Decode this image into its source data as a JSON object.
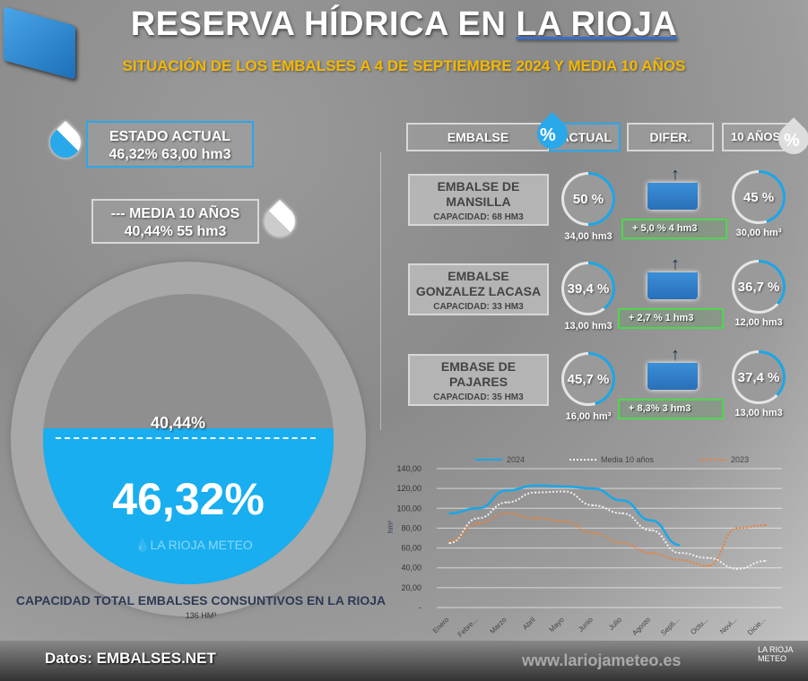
{
  "header": {
    "title_part1": "RESERVA HÍDRICA EN ",
    "title_part2": "LA RIOJA",
    "subtitle": "SITUACIÓN DE LOS EMBALSES A 4 DE SEPTIEMBRE 2024 Y MEDIA 10 AÑOS"
  },
  "left": {
    "current": {
      "label": "ESTADO ACTUAL",
      "value": "46,32%  63,00 hm3"
    },
    "avg": {
      "label": "--- MEDIA 10 AÑOS",
      "value": "40,44%  55 hm3"
    },
    "gauge": {
      "current_pct": "46,32%",
      "avg_pct": "40,44%",
      "current_value": 46.32,
      "avg_value": 40.44,
      "watermark": "LA RIOJA METEO"
    },
    "capacity_label": "CAPACIDAD TOTAL EMBALSES CONSUNTIVOS EN LA RIOJA",
    "capacity_value": "136 HM³"
  },
  "table": {
    "headers": {
      "embalse": "EMBALSE",
      "actual": "ACTUAL",
      "difer": "DIFER.",
      "avg": "10 AÑOS",
      "pct_symbol": "%"
    },
    "rows": [
      {
        "name1": "EMBALSE DE",
        "name2": "MANSILLA",
        "capacity": "CAPACIDAD: 68 HM3",
        "actual_pct": "50 %",
        "actual_value": 50,
        "actual_hm": "34,00 hm3",
        "diff": "+ 5,0 %    4 hm3",
        "avg_pct": "45 %",
        "avg_value": 45,
        "avg_hm": "30,00 hm³"
      },
      {
        "name1": "EMBALSE",
        "name2": "GONZALEZ LACASA",
        "capacity": "CAPACIDAD: 33 HM3",
        "actual_pct": "39,4 %",
        "actual_value": 39.4,
        "actual_hm": "13,00 hm3",
        "diff": "+ 2,7 %    1 hm3",
        "avg_pct": "36,7 %",
        "avg_value": 36.7,
        "avg_hm": "12,00 hm3"
      },
      {
        "name1": "EMBASE DE",
        "name2": "PAJARES",
        "capacity": "CAPACIDAD: 35 HM3",
        "actual_pct": "45,7 %",
        "actual_value": 45.7,
        "actual_hm": "16,00 hm³",
        "diff": "+ 8,3%     3 hm3",
        "avg_pct": "37,4 %",
        "avg_value": 37.4,
        "avg_hm": "13,00 hm3"
      }
    ]
  },
  "chart_data": {
    "type": "line",
    "ylabel": "hm³",
    "ylim": [
      0,
      140
    ],
    "grid": true,
    "legend": "top",
    "yticks": [
      "-",
      "20,00",
      "40,00",
      "60,00",
      "80,00",
      "100,00",
      "120,00",
      "140,00"
    ],
    "categories": [
      "Enero",
      "Febre...",
      "Marzo",
      "Abril",
      "Mayo",
      "Junio",
      "Julio",
      "Agosto",
      "Septi...",
      "Octu...",
      "Novi...",
      "Dicie..."
    ],
    "series": [
      {
        "name": "2024",
        "color": "#1aa7e8",
        "style": "solid",
        "values": [
          95,
          100,
          118,
          123,
          122,
          120,
          108,
          88,
          63,
          null,
          null,
          null
        ]
      },
      {
        "name": "Media 10 años",
        "color": "#f2f2f2",
        "style": "dotted",
        "values": [
          65,
          90,
          106,
          116,
          117,
          103,
          95,
          78,
          55,
          50,
          39,
          47
        ]
      },
      {
        "name": "2023",
        "color": "#e8823a",
        "style": "dotted",
        "values": [
          67,
          85,
          95,
          90,
          87,
          75,
          65,
          55,
          48,
          42,
          80,
          83
        ]
      }
    ]
  },
  "footer": {
    "source": "Datos: EMBALSES.NET",
    "website": "www.lariojameteo.es",
    "logo": "LA RIOJA METEO"
  }
}
